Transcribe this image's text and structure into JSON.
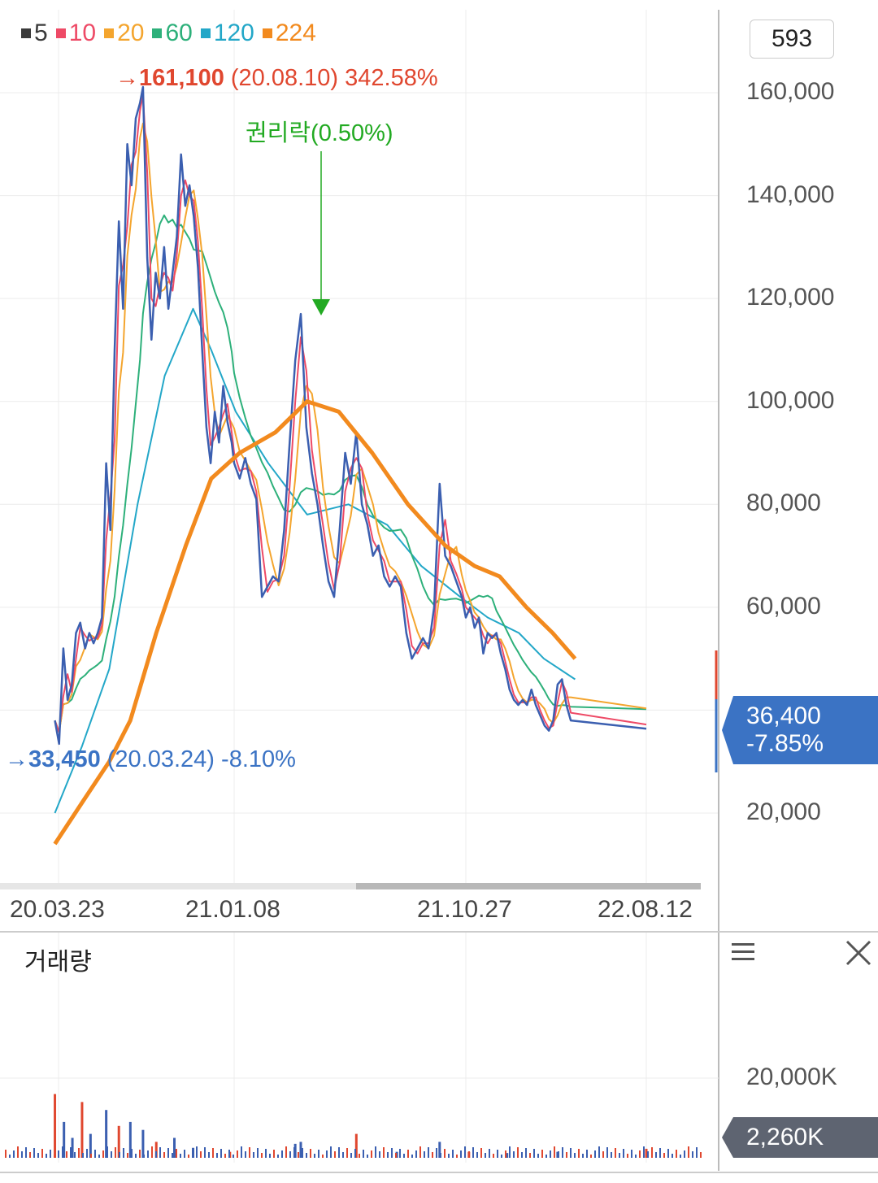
{
  "legend": [
    {
      "label": "5",
      "color": "#3a3a3a"
    },
    {
      "label": "10",
      "color": "#ee4a66"
    },
    {
      "label": "20",
      "color": "#f4a52e"
    },
    {
      "label": "60",
      "color": "#2db07a"
    },
    {
      "label": "120",
      "color": "#23a7c8"
    },
    {
      "label": "224",
      "color": "#f28a1e"
    }
  ],
  "count_value": "593",
  "high_annotation": {
    "arrow": "→",
    "price": "161,100",
    "date": "(20.08.10)",
    "pct": "342.58%",
    "color": "#e0472f"
  },
  "low_annotation": {
    "arrow": "→",
    "price": "33,450",
    "date": "(20.03.24)",
    "pct": "-8.10%",
    "color": "#3b73c4"
  },
  "event_annotation": {
    "label": "권리락(0.50%)",
    "color": "#22aa22"
  },
  "current_price": {
    "price": "36,400",
    "change": "-7.85%"
  },
  "x_ticks": [
    "20.03.23",
    "21.01.08",
    "21.10.27",
    "22.08.12"
  ],
  "volume_panel": {
    "title": "거래량",
    "y_tick": "20,000K",
    "current": "2,260K"
  },
  "chart_data": {
    "type": "line",
    "title": "",
    "xlabel": "",
    "ylabel": "",
    "x_ticks": [
      "20.03.23",
      "21.01.08",
      "21.10.27",
      "22.08.12"
    ],
    "y_ticks": [
      20000,
      40000,
      60000,
      80000,
      100000,
      120000,
      140000,
      160000
    ],
    "y_tick_labels": [
      "20,000",
      "",
      "60,000",
      "80,000",
      "100,000",
      "120,000",
      "140,000",
      "160,000"
    ],
    "ylim": [
      5000,
      170000
    ],
    "grid": true,
    "legend_position": "top-left",
    "price_series": [
      [
        "20.03.17",
        38000
      ],
      [
        "20.03.24",
        33450
      ],
      [
        "20.03.31",
        52000
      ],
      [
        "20.04.07",
        42000
      ],
      [
        "20.04.14",
        45000
      ],
      [
        "20.04.21",
        55000
      ],
      [
        "20.04.28",
        57000
      ],
      [
        "20.05.06",
        52000
      ],
      [
        "20.05.13",
        55000
      ],
      [
        "20.05.20",
        53000
      ],
      [
        "20.05.27",
        55000
      ],
      [
        "20.06.03",
        58000
      ],
      [
        "20.06.10",
        88000
      ],
      [
        "20.06.17",
        75000
      ],
      [
        "20.06.24",
        110000
      ],
      [
        "20.07.01",
        135000
      ],
      [
        "20.07.08",
        118000
      ],
      [
        "20.07.15",
        150000
      ],
      [
        "20.07.22",
        142000
      ],
      [
        "20.07.29",
        155000
      ],
      [
        "20.08.05",
        158000
      ],
      [
        "20.08.10",
        161100
      ],
      [
        "20.08.17",
        128000
      ],
      [
        "20.08.24",
        112000
      ],
      [
        "20.08.31",
        125000
      ],
      [
        "20.09.07",
        120000
      ],
      [
        "20.09.14",
        130000
      ],
      [
        "20.09.21",
        118000
      ],
      [
        "20.09.28",
        125000
      ],
      [
        "20.10.05",
        132000
      ],
      [
        "20.10.12",
        148000
      ],
      [
        "20.10.19",
        138000
      ],
      [
        "20.10.26",
        142000
      ],
      [
        "20.11.02",
        136000
      ],
      [
        "20.11.09",
        126000
      ],
      [
        "20.11.16",
        110000
      ],
      [
        "20.11.23",
        95000
      ],
      [
        "20.11.30",
        88000
      ],
      [
        "20.12.07",
        98000
      ],
      [
        "20.12.14",
        92000
      ],
      [
        "20.12.21",
        103000
      ],
      [
        "20.12.28",
        96000
      ],
      [
        "21.01.04",
        92000
      ],
      [
        "21.01.08",
        88000
      ],
      [
        "21.01.15",
        85000
      ],
      [
        "21.01.22",
        89000
      ],
      [
        "21.01.29",
        84000
      ],
      [
        "21.02.05",
        81000
      ],
      [
        "21.02.12",
        62000
      ],
      [
        "21.02.19",
        64000
      ],
      [
        "21.02.26",
        66000
      ],
      [
        "21.03.05",
        65000
      ],
      [
        "21.03.12",
        75000
      ],
      [
        "21.03.19",
        92000
      ],
      [
        "21.03.26",
        108000
      ],
      [
        "21.04.02",
        117000
      ],
      [
        "21.04.09",
        95000
      ],
      [
        "21.04.16",
        86000
      ],
      [
        "21.04.23",
        80000
      ],
      [
        "21.04.30",
        72000
      ],
      [
        "21.05.07",
        65000
      ],
      [
        "21.05.14",
        62000
      ],
      [
        "21.05.21",
        75000
      ],
      [
        "21.05.28",
        90000
      ],
      [
        "21.06.04",
        84000
      ],
      [
        "21.06.11",
        94000
      ],
      [
        "21.06.18",
        80000
      ],
      [
        "21.06.25",
        76000
      ],
      [
        "21.07.02",
        70000
      ],
      [
        "21.07.09",
        72000
      ],
      [
        "21.07.16",
        66000
      ],
      [
        "21.07.23",
        64000
      ],
      [
        "21.07.30",
        66000
      ],
      [
        "21.08.06",
        64000
      ],
      [
        "21.08.13",
        55000
      ],
      [
        "21.08.20",
        50000
      ],
      [
        "21.08.27",
        52000
      ],
      [
        "21.09.03",
        54000
      ],
      [
        "21.09.10",
        52000
      ],
      [
        "21.09.17",
        60000
      ],
      [
        "21.09.24",
        84000
      ],
      [
        "21.10.01",
        70000
      ],
      [
        "21.10.08",
        68000
      ],
      [
        "21.10.15",
        65000
      ],
      [
        "21.10.22",
        62000
      ],
      [
        "21.10.27",
        58000
      ],
      [
        "21.11.03",
        60000
      ],
      [
        "21.11.10",
        56000
      ],
      [
        "21.11.17",
        58000
      ],
      [
        "21.11.24",
        51000
      ],
      [
        "21.12.01",
        55000
      ],
      [
        "21.12.08",
        54000
      ],
      [
        "21.12.15",
        55000
      ],
      [
        "21.12.22",
        51000
      ],
      [
        "21.12.29",
        48000
      ],
      [
        "22.01.05",
        44000
      ],
      [
        "22.01.12",
        42000
      ],
      [
        "22.01.19",
        41000
      ],
      [
        "22.01.26",
        42000
      ],
      [
        "22.02.02",
        41000
      ],
      [
        "22.02.09",
        44000
      ],
      [
        "22.02.16",
        41000
      ],
      [
        "22.02.23",
        39000
      ],
      [
        "22.03.02",
        37000
      ],
      [
        "22.03.09",
        36000
      ],
      [
        "22.03.16",
        38000
      ],
      [
        "22.03.23",
        45000
      ],
      [
        "22.03.30",
        46000
      ],
      [
        "22.04.06",
        41000
      ],
      [
        "22.04.13",
        38000
      ],
      [
        "22.08.12",
        36400
      ]
    ],
    "series": [
      {
        "name": "5",
        "color": "#3a3a3a"
      },
      {
        "name": "10",
        "color": "#ee4a66"
      },
      {
        "name": "20",
        "color": "#f4a52e"
      },
      {
        "name": "60",
        "color": "#2db07a"
      },
      {
        "name": "120",
        "color": "#23a7c8"
      },
      {
        "name": "224",
        "color": "#f28a1e"
      }
    ],
    "ma224_approx": [
      [
        "20.03.17",
        14000
      ],
      [
        "20.05.01",
        22000
      ],
      [
        "20.06.15",
        30000
      ],
      [
        "20.07.20",
        38000
      ],
      [
        "20.09.01",
        55000
      ],
      [
        "20.10.20",
        72000
      ],
      [
        "20.12.01",
        85000
      ],
      [
        "21.01.15",
        90000
      ],
      [
        "21.03.01",
        94000
      ],
      [
        "21.04.10",
        100000
      ],
      [
        "21.05.20",
        98000
      ],
      [
        "21.07.01",
        90000
      ],
      [
        "21.08.15",
        80000
      ],
      [
        "21.10.01",
        72000
      ],
      [
        "21.11.10",
        68000
      ],
      [
        "21.12.20",
        66000
      ],
      [
        "22.02.01",
        60000
      ],
      [
        "22.03.15",
        55000
      ],
      [
        "22.04.20",
        50000
      ]
    ],
    "ma120_approx": [
      [
        "20.03.17",
        20000
      ],
      [
        "20.05.01",
        33000
      ],
      [
        "20.06.15",
        48000
      ],
      [
        "20.08.01",
        80000
      ],
      [
        "20.09.15",
        105000
      ],
      [
        "20.11.01",
        118000
      ],
      [
        "20.12.01",
        110000
      ],
      [
        "21.01.10",
        98000
      ],
      [
        "21.02.20",
        88000
      ],
      [
        "21.04.10",
        78000
      ],
      [
        "21.06.01",
        80000
      ],
      [
        "21.07.20",
        76000
      ],
      [
        "21.09.01",
        68000
      ],
      [
        "21.10.20",
        62000
      ],
      [
        "21.12.01",
        58000
      ],
      [
        "22.01.20",
        55000
      ],
      [
        "22.03.01",
        50000
      ],
      [
        "22.04.20",
        46000
      ]
    ],
    "volume_series": [
      [
        "20.03.17",
        16000
      ],
      [
        "20.04.01",
        9000
      ],
      [
        "20.04.15",
        5000
      ],
      [
        "20.05.01",
        14000
      ],
      [
        "20.05.15",
        6000
      ],
      [
        "20.06.10",
        12000
      ],
      [
        "20.07.01",
        8000
      ],
      [
        "20.07.20",
        9000
      ],
      [
        "20.08.10",
        7000
      ],
      [
        "20.09.01",
        4000
      ],
      [
        "20.10.01",
        5000
      ],
      [
        "20.11.01",
        2500
      ],
      [
        "21.01.01",
        1500
      ],
      [
        "21.03.26",
        3500
      ],
      [
        "21.04.02",
        4000
      ],
      [
        "21.06.11",
        6000
      ],
      [
        "21.08.01",
        1500
      ],
      [
        "21.09.24",
        4000
      ],
      [
        "21.11.01",
        1500
      ],
      [
        "22.01.01",
        1200
      ],
      [
        "22.03.23",
        1500
      ],
      [
        "22.08.12",
        2260
      ]
    ]
  }
}
